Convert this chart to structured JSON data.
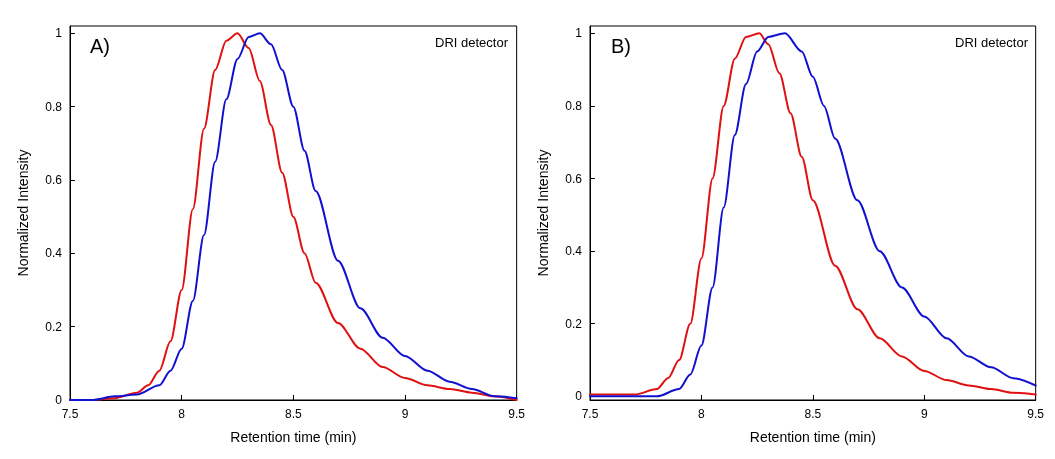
{
  "chart_data": [
    {
      "type": "line",
      "xlabel": "Retention time (min)",
      "ylabel": "Normalized Intensity",
      "annotations": [
        "A)",
        "DRI detector"
      ],
      "xlim": [
        7.5,
        9.5
      ],
      "xticks": [
        7.5,
        8,
        8.5,
        9,
        9.5
      ],
      "ylim": [
        0,
        1.02
      ],
      "yticks": [
        0,
        0.2,
        0.4,
        0.6,
        0.8,
        1
      ],
      "grid": false,
      "marker": "none",
      "line_style": "solid",
      "series": [
        {
          "color": "#e01010",
          "x": [
            7.5,
            7.6,
            7.7,
            7.8,
            7.85,
            7.9,
            7.95,
            8.0,
            8.05,
            8.1,
            8.15,
            8.2,
            8.25,
            8.3,
            8.35,
            8.4,
            8.45,
            8.5,
            8.55,
            8.6,
            8.7,
            8.8,
            8.9,
            9.0,
            9.1,
            9.2,
            9.3,
            9.4,
            9.5
          ],
          "values": [
            0,
            0,
            0.005,
            0.02,
            0.04,
            0.08,
            0.16,
            0.3,
            0.52,
            0.74,
            0.9,
            0.98,
            1.0,
            0.96,
            0.87,
            0.75,
            0.62,
            0.5,
            0.4,
            0.32,
            0.21,
            0.14,
            0.09,
            0.06,
            0.04,
            0.03,
            0.02,
            0.01,
            0.0
          ]
        },
        {
          "color": "#1010d0",
          "x": [
            7.5,
            7.6,
            7.7,
            7.8,
            7.9,
            7.95,
            8.0,
            8.05,
            8.1,
            8.15,
            8.2,
            8.25,
            8.3,
            8.35,
            8.4,
            8.45,
            8.5,
            8.55,
            8.6,
            8.7,
            8.8,
            8.9,
            9.0,
            9.1,
            9.2,
            9.3,
            9.4,
            9.5
          ],
          "values": [
            0,
            0,
            0.01,
            0.015,
            0.04,
            0.08,
            0.14,
            0.27,
            0.45,
            0.65,
            0.82,
            0.93,
            0.99,
            1.0,
            0.97,
            0.9,
            0.8,
            0.68,
            0.57,
            0.38,
            0.25,
            0.17,
            0.12,
            0.08,
            0.05,
            0.03,
            0.01,
            0.005
          ]
        }
      ]
    },
    {
      "type": "line",
      "xlabel": "Retention time (min)",
      "ylabel": "Normalized Intensity",
      "annotations": [
        "B)",
        "DRI detector"
      ],
      "xlim": [
        7.5,
        9.5
      ],
      "xticks": [
        7.5,
        8,
        8.5,
        9,
        9.5
      ],
      "ylim": [
        -0.01,
        1.02
      ],
      "yticks": [
        0,
        0.2,
        0.4,
        0.6,
        0.8,
        1
      ],
      "grid": false,
      "marker": "none",
      "line_style": "solid",
      "series": [
        {
          "color": "#e01010",
          "x": [
            7.5,
            7.7,
            7.8,
            7.85,
            7.9,
            7.95,
            8.0,
            8.05,
            8.1,
            8.15,
            8.2,
            8.26,
            8.3,
            8.35,
            8.4,
            8.45,
            8.5,
            8.6,
            8.7,
            8.8,
            8.9,
            9.0,
            9.1,
            9.2,
            9.3,
            9.4,
            9.5
          ],
          "values": [
            0.005,
            0.005,
            0.02,
            0.05,
            0.1,
            0.2,
            0.38,
            0.6,
            0.8,
            0.93,
            0.99,
            1.0,
            0.97,
            0.89,
            0.78,
            0.66,
            0.54,
            0.36,
            0.24,
            0.16,
            0.11,
            0.07,
            0.045,
            0.03,
            0.02,
            0.01,
            0.005
          ]
        },
        {
          "color": "#1010d0",
          "x": [
            7.5,
            7.7,
            7.8,
            7.9,
            7.95,
            8.0,
            8.05,
            8.1,
            8.15,
            8.2,
            8.25,
            8.3,
            8.375,
            8.45,
            8.5,
            8.55,
            8.6,
            8.7,
            8.8,
            8.9,
            9.0,
            9.1,
            9.2,
            9.3,
            9.4,
            9.5
          ],
          "values": [
            0,
            0,
            0,
            0.02,
            0.06,
            0.14,
            0.3,
            0.52,
            0.72,
            0.86,
            0.95,
            0.99,
            1.0,
            0.95,
            0.88,
            0.8,
            0.71,
            0.54,
            0.4,
            0.3,
            0.22,
            0.16,
            0.11,
            0.08,
            0.05,
            0.03
          ]
        }
      ]
    }
  ]
}
